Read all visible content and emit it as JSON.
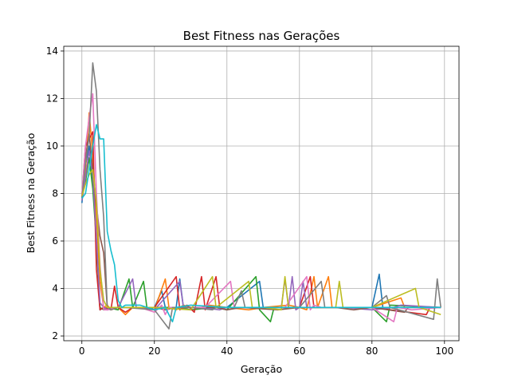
{
  "chart_data": {
    "type": "line",
    "title": "Best Fitness nas Gerações",
    "xlabel": "Geração",
    "ylabel": "Best Fitness na Geração",
    "xlim": [
      -5,
      104
    ],
    "ylim": [
      1.8,
      14.2
    ],
    "xticks": [
      0,
      20,
      40,
      60,
      80,
      100
    ],
    "yticks": [
      2,
      4,
      6,
      8,
      10,
      12,
      14
    ],
    "grid": true,
    "series": [
      {
        "color": "#1f77b4",
        "points": [
          [
            0,
            7.6
          ],
          [
            1,
            9.2
          ],
          [
            2,
            10.0
          ],
          [
            3,
            8.6
          ],
          [
            4,
            6.0
          ],
          [
            5,
            3.1
          ],
          [
            6,
            3.2
          ],
          [
            7,
            3.1
          ],
          [
            8,
            3.2
          ],
          [
            9,
            3.2
          ],
          [
            10,
            3.2
          ],
          [
            15,
            3.2
          ],
          [
            20,
            3.2
          ],
          [
            22,
            3.9
          ],
          [
            23,
            3.2
          ],
          [
            26,
            3.2
          ],
          [
            27,
            4.4
          ],
          [
            28,
            3.2
          ],
          [
            40,
            3.2
          ],
          [
            49,
            4.3
          ],
          [
            50,
            3.2
          ],
          [
            60,
            3.2
          ],
          [
            66,
            3.2
          ],
          [
            80,
            3.2
          ],
          [
            82,
            4.6
          ],
          [
            83,
            3.2
          ],
          [
            99,
            3.2
          ]
        ]
      },
      {
        "color": "#ff7f0e",
        "points": [
          [
            0,
            7.8
          ],
          [
            1,
            9.0
          ],
          [
            2,
            11.4
          ],
          [
            3,
            9.6
          ],
          [
            4,
            7.0
          ],
          [
            5,
            4.3
          ],
          [
            6,
            3.2
          ],
          [
            7,
            3.3
          ],
          [
            8,
            3.1
          ],
          [
            10,
            3.2
          ],
          [
            12,
            2.9
          ],
          [
            14,
            3.2
          ],
          [
            16,
            3.2
          ],
          [
            20,
            3.1
          ],
          [
            23,
            4.4
          ],
          [
            24,
            3.2
          ],
          [
            26,
            3.1
          ],
          [
            28,
            3.3
          ],
          [
            30,
            3.2
          ],
          [
            33,
            3.2
          ],
          [
            35,
            3.3
          ],
          [
            40,
            3.2
          ],
          [
            46,
            3.1
          ],
          [
            50,
            3.2
          ],
          [
            57,
            3.3
          ],
          [
            60,
            3.2
          ],
          [
            62,
            3.1
          ],
          [
            64,
            4.5
          ],
          [
            65,
            3.2
          ],
          [
            68,
            4.5
          ],
          [
            69,
            3.2
          ],
          [
            80,
            3.2
          ],
          [
            88,
            3.6
          ],
          [
            89,
            3.2
          ],
          [
            99,
            3.2
          ]
        ]
      },
      {
        "color": "#2ca02c",
        "points": [
          [
            0,
            7.8
          ],
          [
            1,
            8.5
          ],
          [
            2,
            9.5
          ],
          [
            3,
            8.2
          ],
          [
            4,
            6.0
          ],
          [
            5,
            3.2
          ],
          [
            6,
            3.1
          ],
          [
            7,
            3.2
          ],
          [
            10,
            3.1
          ],
          [
            13,
            4.4
          ],
          [
            14,
            3.2
          ],
          [
            17,
            4.3
          ],
          [
            18,
            3.1
          ],
          [
            20,
            3.2
          ],
          [
            27,
            3.2
          ],
          [
            30,
            3.1
          ],
          [
            37,
            3.2
          ],
          [
            40,
            3.1
          ],
          [
            48,
            4.5
          ],
          [
            49,
            3.1
          ],
          [
            52,
            2.6
          ],
          [
            53,
            3.2
          ],
          [
            60,
            3.2
          ],
          [
            80,
            3.2
          ],
          [
            84,
            2.6
          ],
          [
            85,
            3.3
          ],
          [
            99,
            3.2
          ]
        ]
      },
      {
        "color": "#d62728",
        "points": [
          [
            0,
            7.9
          ],
          [
            1,
            10.0
          ],
          [
            2,
            10.3
          ],
          [
            3,
            10.6
          ],
          [
            4,
            4.8
          ],
          [
            5,
            3.1
          ],
          [
            6,
            3.2
          ],
          [
            8,
            3.1
          ],
          [
            9,
            4.1
          ],
          [
            10,
            3.2
          ],
          [
            12,
            3.0
          ],
          [
            14,
            3.2
          ],
          [
            20,
            3.2
          ],
          [
            26,
            4.5
          ],
          [
            27,
            3.1
          ],
          [
            29,
            3.3
          ],
          [
            31,
            3.0
          ],
          [
            33,
            4.5
          ],
          [
            34,
            3.1
          ],
          [
            37,
            4.5
          ],
          [
            38,
            3.2
          ],
          [
            44,
            3.2
          ],
          [
            52,
            3.2
          ],
          [
            60,
            3.2
          ],
          [
            63,
            4.5
          ],
          [
            64,
            3.2
          ],
          [
            80,
            3.2
          ],
          [
            95,
            2.9
          ],
          [
            96,
            3.2
          ],
          [
            99,
            3.2
          ]
        ]
      },
      {
        "color": "#9467bd",
        "points": [
          [
            0,
            7.7
          ],
          [
            1,
            8.7
          ],
          [
            2,
            9.8
          ],
          [
            3,
            8.8
          ],
          [
            4,
            6.1
          ],
          [
            5,
            3.4
          ],
          [
            6,
            3.2
          ],
          [
            7,
            3.1
          ],
          [
            10,
            3.2
          ],
          [
            14,
            4.4
          ],
          [
            15,
            3.2
          ],
          [
            20,
            3.1
          ],
          [
            27,
            4.3
          ],
          [
            28,
            3.2
          ],
          [
            33,
            3.2
          ],
          [
            38,
            3.1
          ],
          [
            40,
            3.2
          ],
          [
            55,
            3.2
          ],
          [
            56,
            4.4
          ],
          [
            57,
            3.2
          ],
          [
            58,
            4.5
          ],
          [
            59,
            3.1
          ],
          [
            60,
            3.2
          ],
          [
            61,
            4.3
          ],
          [
            62,
            3.2
          ],
          [
            72,
            3.2
          ],
          [
            80,
            3.1
          ],
          [
            86,
            3.2
          ],
          [
            88,
            3.3
          ],
          [
            99,
            3.2
          ]
        ]
      },
      {
        "color": "#8c564b",
        "points": [
          [
            0,
            7.8
          ],
          [
            1,
            9.5
          ],
          [
            2,
            10.5
          ],
          [
            3,
            9.0
          ],
          [
            4,
            7.5
          ],
          [
            5,
            6.2
          ],
          [
            6,
            5.5
          ],
          [
            7,
            3.2
          ],
          [
            8,
            3.1
          ],
          [
            10,
            3.2
          ],
          [
            20,
            3.2
          ],
          [
            23,
            3.1
          ],
          [
            26,
            3.2
          ],
          [
            37,
            3.2
          ],
          [
            40,
            3.1
          ],
          [
            44,
            3.2
          ],
          [
            54,
            3.1
          ],
          [
            60,
            3.2
          ],
          [
            70,
            3.2
          ],
          [
            75,
            3.1
          ],
          [
            80,
            3.2
          ],
          [
            89,
            3.0
          ],
          [
            90,
            3.2
          ],
          [
            99,
            3.2
          ]
        ]
      },
      {
        "color": "#e377c2",
        "points": [
          [
            0,
            7.9
          ],
          [
            1,
            10.0
          ],
          [
            2,
            11.2
          ],
          [
            3,
            12.2
          ],
          [
            4,
            8.0
          ],
          [
            5,
            5.0
          ],
          [
            6,
            3.1
          ],
          [
            7,
            3.1
          ],
          [
            10,
            3.2
          ],
          [
            16,
            3.2
          ],
          [
            20,
            3.0
          ],
          [
            22,
            3.3
          ],
          [
            23,
            2.9
          ],
          [
            24,
            3.2
          ],
          [
            30,
            3.2
          ],
          [
            34,
            3.2
          ],
          [
            41,
            4.3
          ],
          [
            42,
            3.2
          ],
          [
            50,
            3.2
          ],
          [
            56,
            3.2
          ],
          [
            62,
            4.5
          ],
          [
            63,
            3.1
          ],
          [
            64,
            3.3
          ],
          [
            66,
            3.2
          ],
          [
            80,
            3.2
          ],
          [
            86,
            2.6
          ],
          [
            87,
            3.2
          ],
          [
            91,
            3.1
          ],
          [
            99,
            3.2
          ]
        ]
      },
      {
        "color": "#7f7f7f",
        "points": [
          [
            0,
            7.8
          ],
          [
            1,
            9.3
          ],
          [
            2,
            10.4
          ],
          [
            3,
            13.5
          ],
          [
            4,
            12.3
          ],
          [
            5,
            9.0
          ],
          [
            6,
            7.0
          ],
          [
            7,
            3.2
          ],
          [
            8,
            3.1
          ],
          [
            10,
            3.2
          ],
          [
            12,
            3.2
          ],
          [
            20,
            3.1
          ],
          [
            24,
            2.3
          ],
          [
            25,
            3.2
          ],
          [
            30,
            3.2
          ],
          [
            36,
            3.1
          ],
          [
            37,
            3.2
          ],
          [
            42,
            3.2
          ],
          [
            44,
            3.9
          ],
          [
            45,
            3.2
          ],
          [
            55,
            3.2
          ],
          [
            60,
            3.2
          ],
          [
            66,
            4.3
          ],
          [
            67,
            3.2
          ],
          [
            80,
            3.2
          ],
          [
            84,
            3.7
          ],
          [
            85,
            3.2
          ],
          [
            97,
            2.7
          ],
          [
            98,
            4.4
          ],
          [
            99,
            3.2
          ]
        ]
      },
      {
        "color": "#bcbd22",
        "points": [
          [
            0,
            7.9
          ],
          [
            1,
            8.4
          ],
          [
            2,
            8.8
          ],
          [
            3,
            9.0
          ],
          [
            4,
            7.6
          ],
          [
            5,
            4.8
          ],
          [
            6,
            3.5
          ],
          [
            7,
            3.2
          ],
          [
            10,
            3.2
          ],
          [
            20,
            3.2
          ],
          [
            30,
            3.1
          ],
          [
            36,
            4.5
          ],
          [
            37,
            3.2
          ],
          [
            46,
            4.3
          ],
          [
            47,
            3.2
          ],
          [
            50,
            3.2
          ],
          [
            55,
            3.1
          ],
          [
            56,
            4.5
          ],
          [
            57,
            3.2
          ],
          [
            60,
            3.2
          ],
          [
            70,
            3.2
          ],
          [
            71,
            4.3
          ],
          [
            72,
            3.2
          ],
          [
            80,
            3.2
          ],
          [
            92,
            4.0
          ],
          [
            93,
            3.2
          ],
          [
            99,
            2.9
          ]
        ]
      },
      {
        "color": "#17becf",
        "points": [
          [
            0,
            7.8
          ],
          [
            1,
            8.0
          ],
          [
            2,
            9.0
          ],
          [
            3,
            10.0
          ],
          [
            4,
            10.9
          ],
          [
            5,
            10.3
          ],
          [
            6,
            10.3
          ],
          [
            7,
            6.4
          ],
          [
            8,
            5.6
          ],
          [
            9,
            5.0
          ],
          [
            10,
            3.5
          ],
          [
            11,
            3.2
          ],
          [
            12,
            3.3
          ],
          [
            16,
            3.3
          ],
          [
            20,
            3.1
          ],
          [
            23,
            3.2
          ],
          [
            25,
            2.6
          ],
          [
            26,
            3.2
          ],
          [
            30,
            3.3
          ],
          [
            40,
            3.2
          ],
          [
            50,
            3.2
          ],
          [
            60,
            3.2
          ],
          [
            80,
            3.2
          ],
          [
            99,
            3.2
          ]
        ]
      }
    ]
  }
}
